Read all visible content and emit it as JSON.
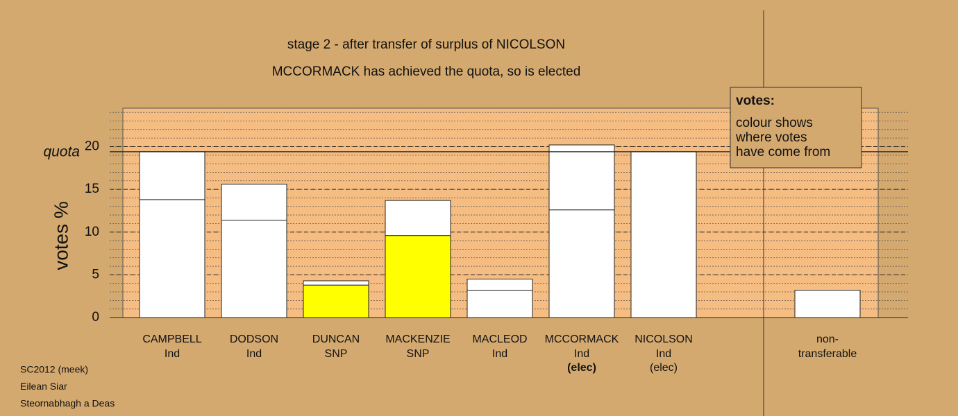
{
  "chart_data": {
    "type": "stacked_bar",
    "title": "stage 2 - after transfer of surplus of NICOLSON",
    "subtitle": "MCCORMACK has achieved the quota, so is elected",
    "ylabel": "votes %",
    "quota_label": "quota",
    "quota": 19.4,
    "categories": [
      "CAMPBELL",
      "DODSON",
      "DUNCAN",
      "MACKENZIE",
      "MACLEOD",
      "MCCORMACK",
      "NICOLSON",
      null,
      "non-transferable"
    ],
    "parties": [
      "Ind",
      "Ind",
      "SNP",
      "SNP",
      "Ind",
      "Ind",
      "Ind",
      null,
      null
    ],
    "notes": [
      null,
      null,
      null,
      null,
      null,
      "(elec)",
      "(elec)",
      null,
      null
    ],
    "notes_bold": [
      false,
      false,
      false,
      false,
      false,
      true,
      false,
      false,
      false
    ],
    "series": [
      {
        "colors": [
          "#ffffff",
          "#ffffff",
          "#ffff00",
          "#ffff00",
          "#ffffff",
          "#ffffff",
          "#ffffff",
          null,
          "#ffffff"
        ],
        "values": [
          13.8,
          11.4,
          3.8,
          9.6,
          3.2,
          12.6,
          19.4,
          null,
          3.2
        ]
      },
      {
        "colors": [
          "#ffffff",
          "#ffffff",
          "#ffffff",
          "#ffffff",
          "#ffffff",
          "#ffffff",
          null,
          null,
          null
        ],
        "values": [
          5.6,
          4.2,
          0.5,
          4.1,
          1.3,
          7.6,
          null,
          null,
          null
        ]
      }
    ],
    "ylim": [
      0,
      24.5
    ],
    "yticks": [
      0,
      5,
      10,
      15,
      20
    ],
    "legend_title": "votes:",
    "legend_lines": [
      "colour shows",
      "where votes",
      "have come from"
    ],
    "footer": [
      "SC2012 (meek)",
      "Eilean Siar",
      "Steornabhagh a Deas"
    ]
  }
}
